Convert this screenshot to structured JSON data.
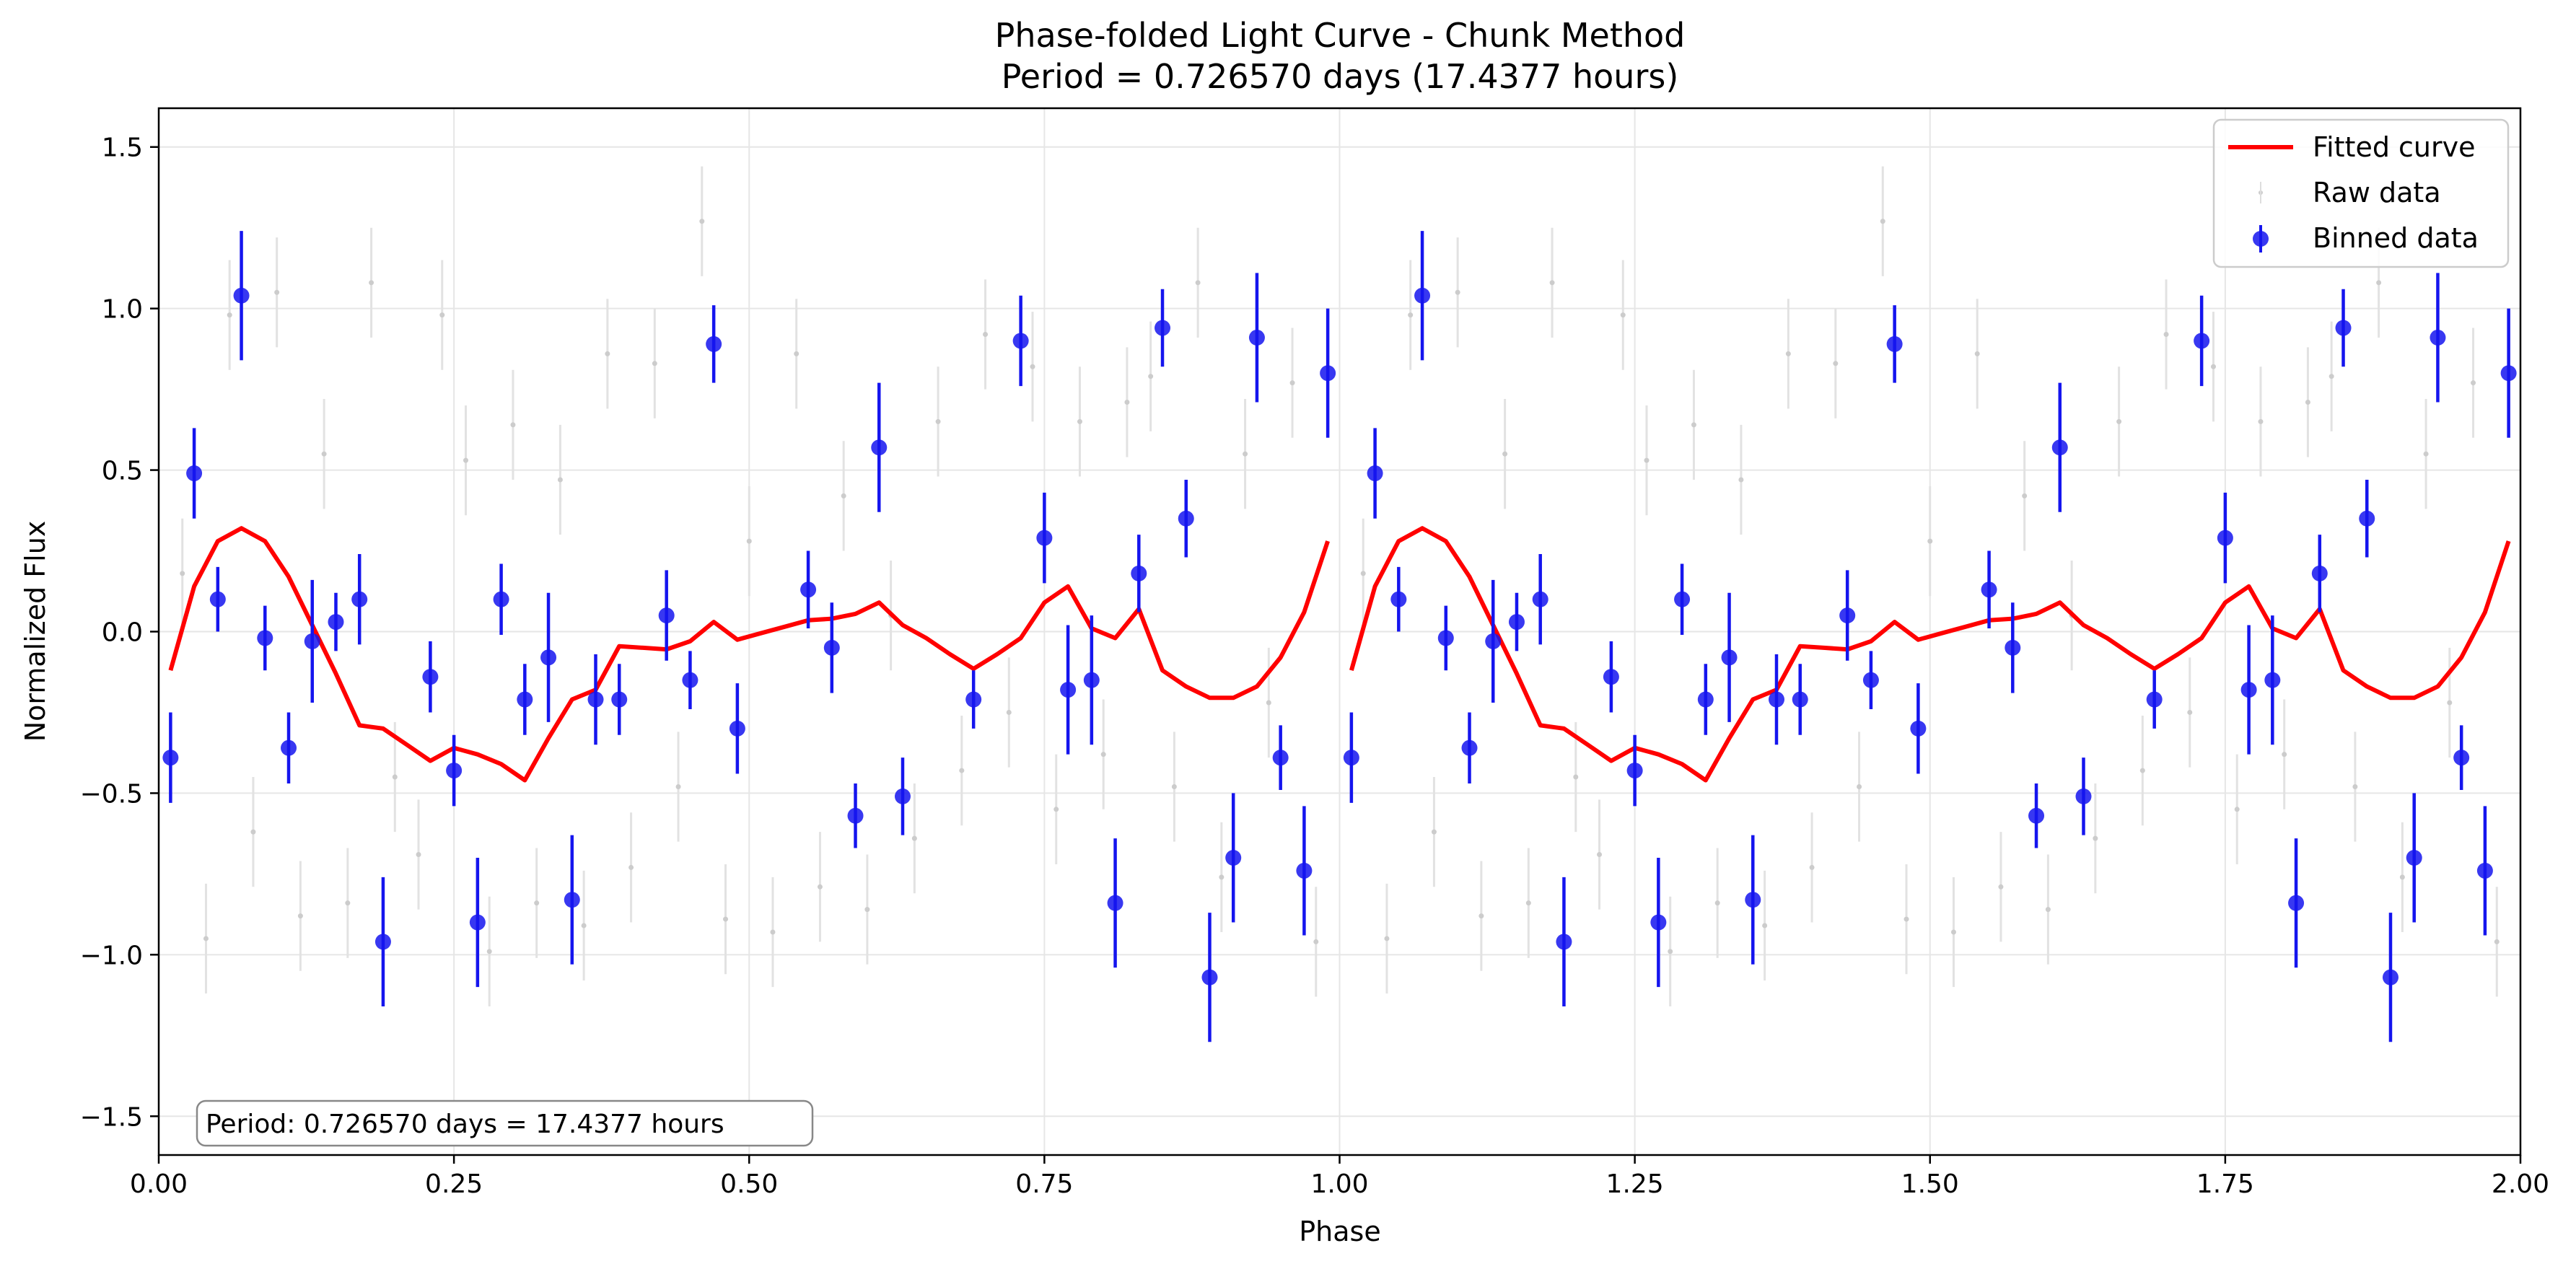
{
  "chart_data": {
    "type": "scatter",
    "title": "Phase-folded Light Curve - Chunk Method",
    "subtitle": "Period = 0.726570 days (17.4377 hours)",
    "xlabel": "Phase",
    "ylabel": "Normalized Flux",
    "xlim": [
      0,
      2
    ],
    "ylim": [
      -1.62,
      1.62
    ],
    "xticks": [
      0,
      0.25,
      0.5,
      0.75,
      1.0,
      1.25,
      1.5,
      1.75,
      2.0
    ],
    "xtick_labels": [
      "0.00",
      "0.25",
      "0.50",
      "0.75",
      "1.00",
      "1.25",
      "1.50",
      "1.75",
      "2.00"
    ],
    "yticks": [
      -1.5,
      -1.0,
      -0.5,
      0.0,
      0.5,
      1.0,
      1.5
    ],
    "ytick_labels": [
      "−1.5",
      "−1.0",
      "−0.5",
      "0.0",
      "0.5",
      "1.0",
      "1.5"
    ],
    "grid": true,
    "legend_position": "top-right",
    "annotation": "Period: 0.726570 days = 17.4377 hours",
    "colors": {
      "fitted": "#ff0000",
      "binned": "#1515ee",
      "raw": "#cccccc"
    },
    "series": [
      {
        "name": "Fitted curve",
        "kind": "line",
        "segments": [
          {
            "x": [
              0.01,
              0.03,
              0.05,
              0.07,
              0.09,
              0.11,
              0.13,
              0.15,
              0.17,
              0.19,
              0.21,
              0.23,
              0.25,
              0.27,
              0.29,
              0.31,
              0.33,
              0.35,
              0.37,
              0.39,
              0.41,
              0.43,
              0.45,
              0.47,
              0.49,
              0.51,
              0.53,
              0.55,
              0.57,
              0.59,
              0.61,
              0.63,
              0.65,
              0.67,
              0.69,
              0.71,
              0.73,
              0.75,
              0.77,
              0.79,
              0.81,
              0.83,
              0.85,
              0.87,
              0.89,
              0.91,
              0.93,
              0.95,
              0.97,
              0.99
            ],
            "y": [
              -0.12,
              0.14,
              0.28,
              0.32,
              0.28,
              0.17,
              0.02,
              -0.13,
              -0.29,
              -0.3,
              -0.35,
              -0.4,
              -0.36,
              -0.38,
              -0.41,
              -0.46,
              -0.33,
              -0.21,
              -0.18,
              -0.045,
              -0.05,
              -0.055,
              -0.03,
              0.03,
              -0.025,
              -0.005,
              0.015,
              0.035,
              0.04,
              0.055,
              0.09,
              0.02,
              -0.02,
              -0.07,
              -0.115,
              -0.07,
              -0.02,
              0.09,
              0.14,
              0.01,
              -0.02,
              0.07,
              -0.12,
              -0.17,
              -0.205,
              -0.205,
              -0.17,
              -0.08,
              0.06,
              0.28
            ]
          },
          {
            "x": [
              1.01,
              1.03,
              1.05,
              1.07,
              1.09,
              1.11,
              1.13,
              1.15,
              1.17,
              1.19,
              1.21,
              1.23,
              1.25,
              1.27,
              1.29,
              1.31,
              1.33,
              1.35,
              1.37,
              1.39,
              1.41,
              1.43,
              1.45,
              1.47,
              1.49,
              1.51,
              1.53,
              1.55,
              1.57,
              1.59,
              1.61,
              1.63,
              1.65,
              1.67,
              1.69,
              1.71,
              1.73,
              1.75,
              1.77,
              1.79,
              1.81,
              1.83,
              1.85,
              1.87,
              1.89,
              1.91,
              1.93,
              1.95,
              1.97,
              1.99
            ],
            "y": [
              -0.12,
              0.14,
              0.28,
              0.32,
              0.28,
              0.17,
              0.02,
              -0.13,
              -0.29,
              -0.3,
              -0.35,
              -0.4,
              -0.36,
              -0.38,
              -0.41,
              -0.46,
              -0.33,
              -0.21,
              -0.18,
              -0.045,
              -0.05,
              -0.055,
              -0.03,
              0.03,
              -0.025,
              -0.005,
              0.015,
              0.035,
              0.04,
              0.055,
              0.09,
              0.02,
              -0.02,
              -0.07,
              -0.115,
              -0.07,
              -0.02,
              0.09,
              0.14,
              0.01,
              -0.02,
              0.07,
              -0.12,
              -0.17,
              -0.205,
              -0.205,
              -0.17,
              -0.08,
              0.06,
              0.28
            ]
          }
        ]
      },
      {
        "name": "Raw data",
        "kind": "scatter",
        "x": [
          0.02,
          0.04,
          0.06,
          0.08,
          0.1,
          0.12,
          0.14,
          0.16,
          0.18,
          0.2,
          0.22,
          0.24,
          0.26,
          0.28,
          0.3,
          0.32,
          0.34,
          0.36,
          0.38,
          0.4,
          0.42,
          0.44,
          0.46,
          0.48,
          0.5,
          0.52,
          0.54,
          0.56,
          0.58,
          0.6,
          0.62,
          0.64,
          0.66,
          0.68,
          0.7,
          0.72,
          0.74,
          0.76,
          0.78,
          0.8,
          0.82,
          0.84,
          0.86,
          0.88,
          0.9,
          0.92,
          0.94,
          0.96,
          0.98,
          1.02,
          1.04,
          1.06,
          1.08,
          1.1,
          1.12,
          1.14,
          1.16,
          1.18,
          1.2,
          1.22,
          1.24,
          1.26,
          1.28,
          1.3,
          1.32,
          1.34,
          1.36,
          1.38,
          1.4,
          1.42,
          1.44,
          1.46,
          1.48,
          1.5,
          1.52,
          1.54,
          1.56,
          1.58,
          1.6,
          1.62,
          1.64,
          1.66,
          1.68,
          1.7,
          1.72,
          1.74,
          1.76,
          1.78,
          1.8,
          1.82,
          1.84,
          1.86,
          1.88,
          1.9,
          1.92,
          1.94,
          1.96,
          1.98
        ],
        "y": [
          0.18,
          -0.95,
          0.98,
          -0.62,
          1.05,
          -0.88,
          0.55,
          -0.84,
          1.08,
          -0.45,
          -0.69,
          0.98,
          0.53,
          -0.99,
          0.64,
          -0.84,
          0.47,
          -0.91,
          0.86,
          -0.73,
          0.83,
          -0.48,
          1.27,
          -0.89,
          0.28,
          -0.93,
          0.86,
          -0.79,
          0.42,
          -0.86,
          0.05,
          -0.64,
          0.65,
          -0.43,
          0.92,
          -0.25,
          0.82,
          -0.55,
          0.65,
          -0.38,
          0.71,
          0.79,
          -0.48,
          1.08,
          -0.76,
          0.55,
          -0.22,
          0.77,
          -0.96,
          0.18,
          -0.95,
          0.98,
          -0.62,
          1.05,
          -0.88,
          0.55,
          -0.84,
          1.08,
          -0.45,
          -0.69,
          0.98,
          0.53,
          -0.99,
          0.64,
          -0.84,
          0.47,
          -0.91,
          0.86,
          -0.73,
          0.83,
          -0.48,
          1.27,
          -0.89,
          0.28,
          -0.93,
          0.86,
          -0.79,
          0.42,
          -0.86,
          0.05,
          -0.64,
          0.65,
          -0.43,
          0.92,
          -0.25,
          0.82,
          -0.55,
          0.65,
          -0.38,
          0.71,
          0.79,
          -0.48,
          1.08,
          -0.76,
          0.55,
          -0.22,
          0.77,
          -0.96
        ]
      },
      {
        "name": "Binned data",
        "kind": "errorbar",
        "x": [
          0.01,
          0.03,
          0.05,
          0.07,
          0.09,
          0.11,
          0.13,
          0.15,
          0.17,
          0.19,
          0.23,
          0.25,
          0.27,
          0.29,
          0.31,
          0.33,
          0.35,
          0.37,
          0.39,
          0.43,
          0.45,
          0.47,
          0.49,
          0.55,
          0.57,
          0.59,
          0.61,
          0.63,
          0.69,
          0.73,
          0.75,
          0.77,
          0.79,
          0.81,
          0.83,
          0.85,
          0.87,
          0.89,
          0.91,
          0.93,
          0.95,
          0.97,
          0.99,
          1.01,
          1.03,
          1.05,
          1.07,
          1.09,
          1.11,
          1.13,
          1.15,
          1.17,
          1.19,
          1.23,
          1.25,
          1.27,
          1.29,
          1.31,
          1.33,
          1.35,
          1.37,
          1.39,
          1.43,
          1.45,
          1.47,
          1.49,
          1.55,
          1.57,
          1.59,
          1.61,
          1.63,
          1.69,
          1.73,
          1.75,
          1.77,
          1.79,
          1.81,
          1.83,
          1.85,
          1.87,
          1.89,
          1.91,
          1.93,
          1.95,
          1.97,
          1.99
        ],
        "y": [
          -0.39,
          0.49,
          0.1,
          1.04,
          -0.02,
          -0.36,
          -0.03,
          0.03,
          0.1,
          -0.96,
          -0.14,
          -0.43,
          -0.9,
          0.1,
          -0.21,
          -0.08,
          -0.83,
          -0.21,
          -0.21,
          0.05,
          -0.15,
          0.89,
          -0.3,
          0.13,
          -0.05,
          -0.57,
          0.57,
          -0.51,
          -0.21,
          0.9,
          0.29,
          -0.18,
          -0.15,
          -0.84,
          0.18,
          0.94,
          0.35,
          -1.07,
          -0.7,
          0.91,
          -0.39,
          -0.74,
          0.8,
          -0.39,
          0.49,
          0.1,
          1.04,
          -0.02,
          -0.36,
          -0.03,
          0.03,
          0.1,
          -0.96,
          -0.14,
          -0.43,
          -0.9,
          0.1,
          -0.21,
          -0.08,
          -0.83,
          -0.21,
          -0.21,
          0.05,
          -0.15,
          0.89,
          -0.3,
          0.13,
          -0.05,
          -0.57,
          0.57,
          -0.51,
          -0.21,
          0.9,
          0.29,
          -0.18,
          -0.15,
          -0.84,
          0.18,
          0.94,
          0.35,
          -1.07,
          -0.7,
          0.91,
          -0.39,
          -0.74,
          0.8
        ],
        "yerr": [
          0.14,
          0.14,
          0.1,
          0.2,
          0.1,
          0.11,
          0.19,
          0.09,
          0.14,
          0.2,
          0.11,
          0.11,
          0.2,
          0.11,
          0.11,
          0.2,
          0.2,
          0.14,
          0.11,
          0.14,
          0.09,
          0.12,
          0.14,
          0.12,
          0.14,
          0.1,
          0.2,
          0.12,
          0.09,
          0.14,
          0.14,
          0.2,
          0.2,
          0.2,
          0.12,
          0.12,
          0.12,
          0.2,
          0.2,
          0.2,
          0.1,
          0.2,
          0.2,
          0.14,
          0.14,
          0.1,
          0.2,
          0.1,
          0.11,
          0.19,
          0.09,
          0.14,
          0.2,
          0.11,
          0.11,
          0.2,
          0.11,
          0.11,
          0.2,
          0.2,
          0.14,
          0.11,
          0.14,
          0.09,
          0.12,
          0.14,
          0.12,
          0.14,
          0.1,
          0.2,
          0.12,
          0.09,
          0.14,
          0.14,
          0.2,
          0.2,
          0.2,
          0.12,
          0.12,
          0.12,
          0.2,
          0.2,
          0.2,
          0.1,
          0.2,
          0.2
        ]
      }
    ]
  }
}
